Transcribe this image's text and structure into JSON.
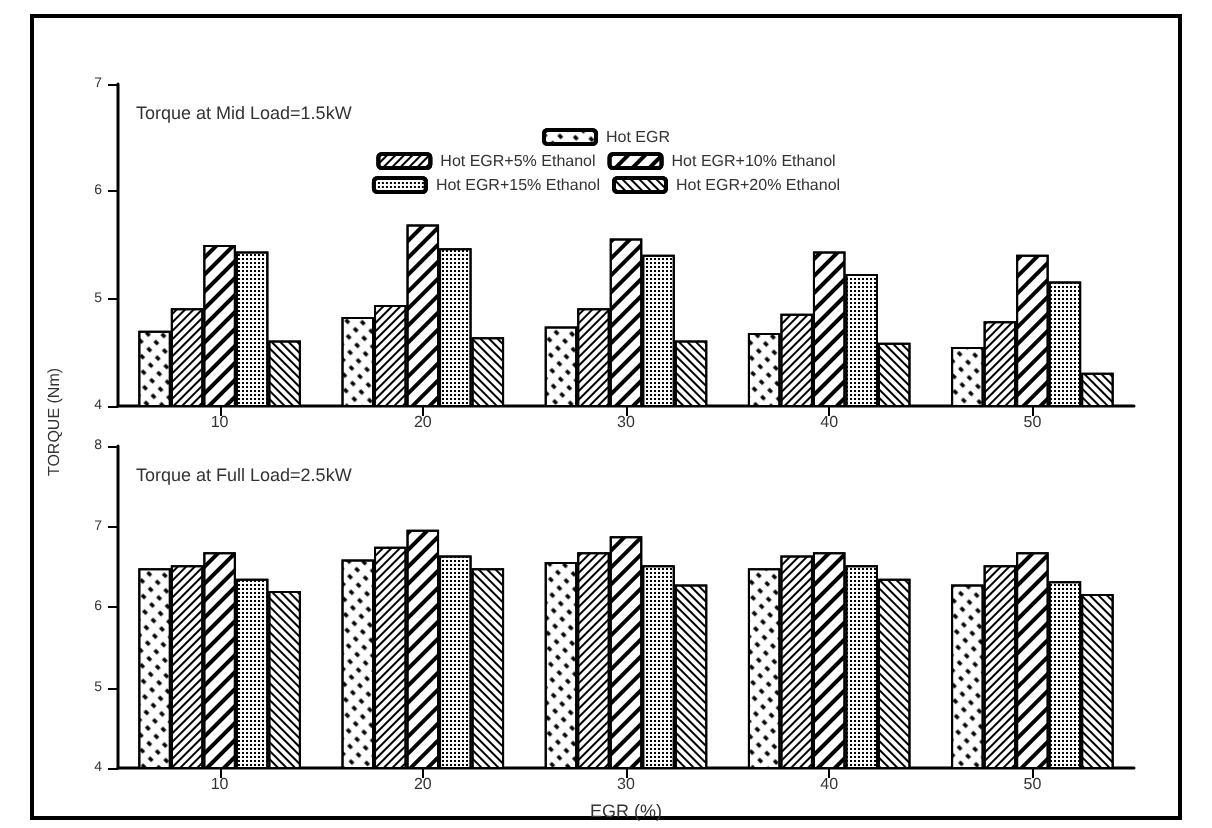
{
  "chart_data": [
    {
      "type": "bar",
      "title": "Torque at Mid Load=1.5kW",
      "ylabel": "TORQUE (Nm)",
      "categories": [
        "10",
        "20",
        "30",
        "40",
        "50"
      ],
      "ylim": [
        4,
        7
      ],
      "yticks": [
        4,
        5,
        6,
        7
      ],
      "legend": "top",
      "grid": false,
      "series": [
        {
          "name": "Hot EGR",
          "color": "#ffffff",
          "values": [
            4.7,
            4.83,
            4.74,
            4.68,
            4.55
          ]
        },
        {
          "name": "Hot EGR+5% Ethanol",
          "color": "#ffffff",
          "values": [
            4.91,
            4.94,
            4.91,
            4.86,
            4.79
          ]
        },
        {
          "name": "Hot EGR+10% Ethanol",
          "color": "#ffffff",
          "values": [
            5.5,
            5.69,
            5.56,
            5.44,
            5.41
          ]
        },
        {
          "name": "Hot EGR+15% Ethanol",
          "color": "#ffffff",
          "values": [
            5.44,
            5.47,
            5.41,
            5.23,
            5.16
          ]
        },
        {
          "name": "Hot EGR+20% Ethanol",
          "color": "#ffffff",
          "values": [
            4.61,
            4.64,
            4.61,
            4.59,
            4.31
          ]
        }
      ]
    },
    {
      "type": "bar",
      "title": "Torque at Full Load=2.5kW",
      "xlabel": "EGR (%)",
      "categories": [
        "10",
        "20",
        "30",
        "40",
        "50"
      ],
      "ylim": [
        4,
        8
      ],
      "yticks": [
        4,
        5,
        6,
        7,
        8
      ],
      "grid": false,
      "series": [
        {
          "color": "#ffffff",
          "values": [
            6.48,
            6.59,
            6.56,
            6.48,
            6.28
          ]
        },
        {
          "color": "#ffffff",
          "values": [
            6.52,
            6.75,
            6.68,
            6.64,
            6.52
          ]
        },
        {
          "color": "#ffffff",
          "values": [
            6.68,
            6.96,
            6.88,
            6.68,
            6.68
          ]
        },
        {
          "color": "#ffffff",
          "values": [
            6.35,
            6.64,
            6.52,
            6.52,
            6.32
          ]
        },
        {
          "color": "#ffffff",
          "values": [
            6.2,
            6.48,
            6.28,
            6.35,
            6.16
          ]
        }
      ]
    }
  ]
}
